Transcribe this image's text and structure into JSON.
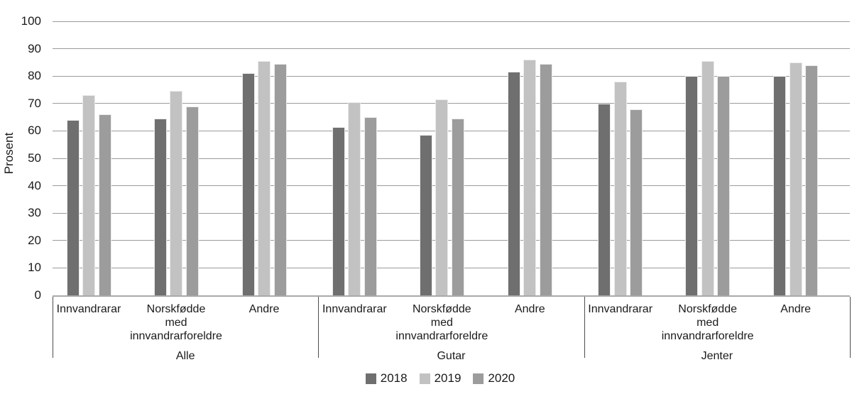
{
  "figure": {
    "background": "#ffffff",
    "text_color": "#1a1a1a",
    "gridline_color": "#9b9b9b",
    "axis_line_color": "#a9a9a9",
    "separator_color": "#4d4d4d"
  },
  "chart_data": {
    "type": "bar",
    "title": "",
    "xlabel": "",
    "ylabel": "Prosent",
    "ylim": [
      0,
      100
    ],
    "yticks": [
      0,
      10,
      20,
      30,
      40,
      50,
      60,
      70,
      80,
      90,
      100
    ],
    "grid": "horizontal",
    "legend_position": "bottom",
    "group_labels": [
      "Alle",
      "Gutar",
      "Jenter"
    ],
    "categories": [
      "Innvandrarar",
      "Norskfødde med innvandrarforeldre",
      "Andre"
    ],
    "category_label_lines": [
      [
        "Innvandrarar"
      ],
      [
        "Norskfødde",
        "med",
        "innvandrarforeldre"
      ],
      [
        "Andre"
      ]
    ],
    "series": [
      {
        "name": "2018",
        "color": "#6f6f6f",
        "values": [
          [
            64,
            64.5,
            81
          ],
          [
            61.5,
            58.5,
            81.5
          ],
          [
            70,
            80,
            80
          ]
        ]
      },
      {
        "name": "2019",
        "color": "#c2c2c2",
        "values": [
          [
            73,
            74.5,
            85.5
          ],
          [
            70.5,
            71.5,
            86
          ],
          [
            78,
            85.5,
            85
          ]
        ]
      },
      {
        "name": "2020",
        "color": "#9c9c9c",
        "values": [
          [
            66,
            69,
            84.5
          ],
          [
            65,
            64.5,
            84.5
          ],
          [
            68,
            80,
            84
          ]
        ]
      }
    ]
  }
}
